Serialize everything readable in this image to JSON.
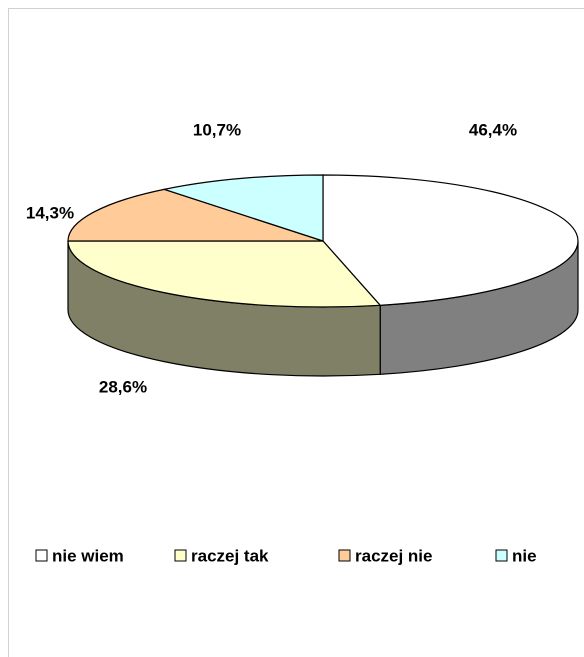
{
  "chart_data": {
    "type": "pie3d",
    "categories": [
      "nie wiem",
      "raczej tak",
      "raczej nie",
      "nie"
    ],
    "values": [
      46.4,
      28.6,
      14.3,
      10.7
    ],
    "value_labels": [
      "46,4%",
      "28,6%",
      "14,3%",
      "10,7%"
    ],
    "colors": [
      "#ffffff",
      "#ffffcc",
      "#ffcc99",
      "#ccffff"
    ],
    "legend": "bottom"
  }
}
